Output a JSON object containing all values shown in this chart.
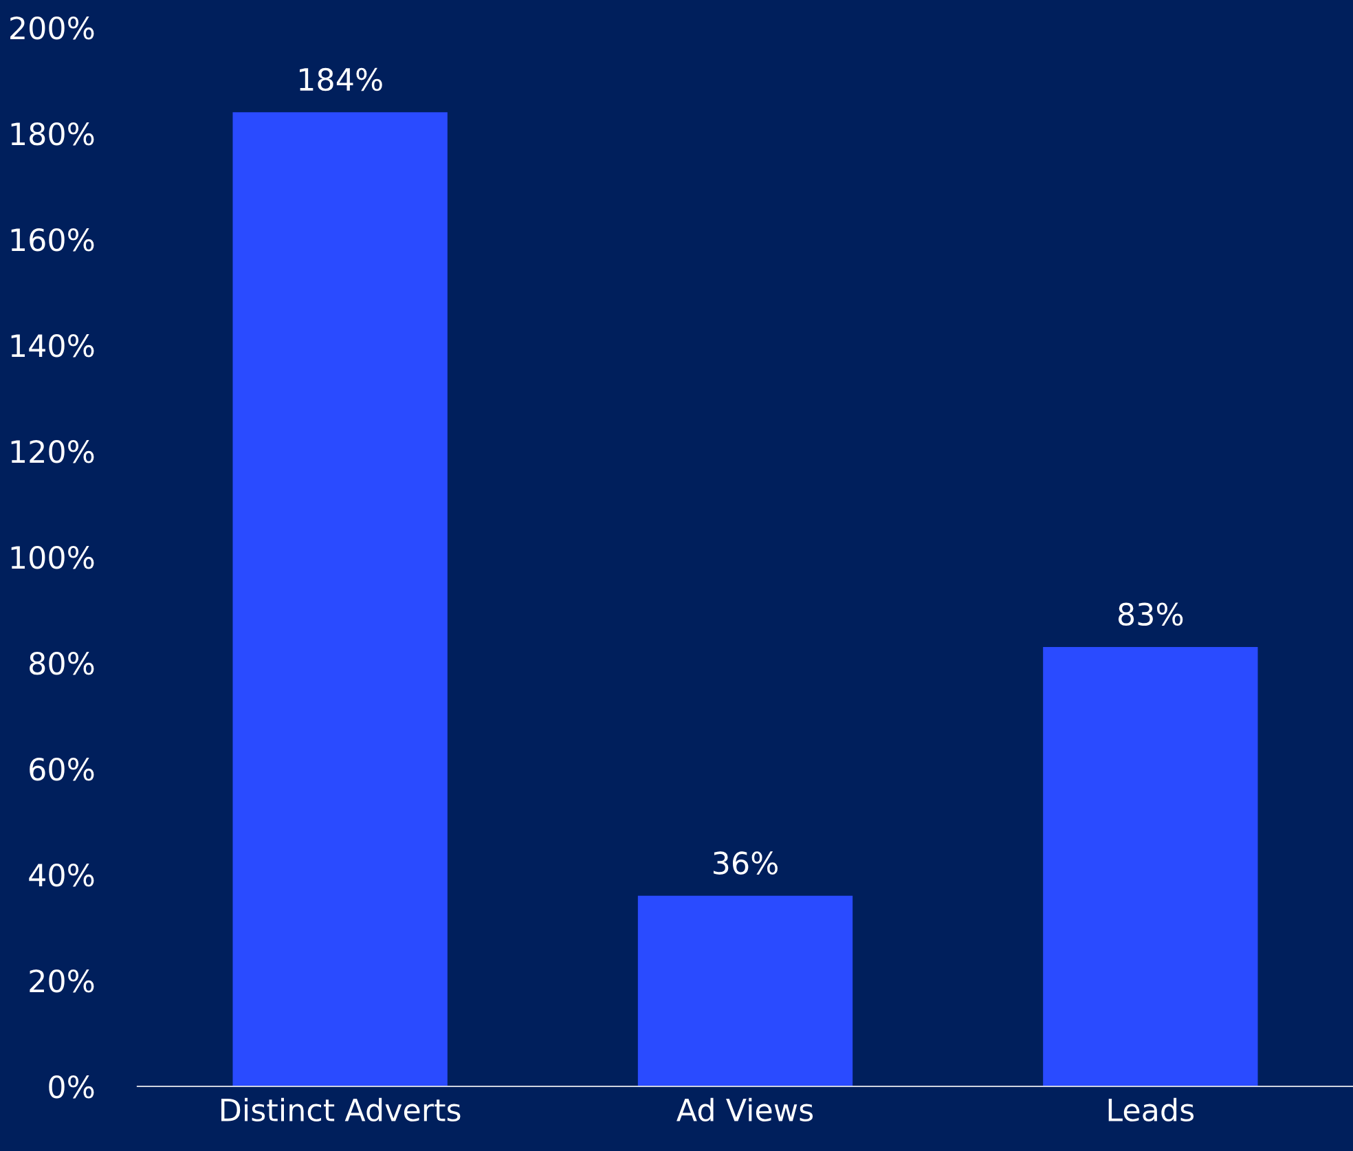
{
  "chart_data": {
    "type": "bar",
    "categories": [
      "Distinct Adverts",
      "Ad Views",
      "Leads"
    ],
    "values": [
      184,
      36,
      83
    ],
    "value_labels": [
      "184%",
      "36%",
      "83%"
    ],
    "color": "#2a4bff",
    "ylim": [
      0,
      200
    ],
    "yticks": [
      {
        "value": 0,
        "label": "0%"
      },
      {
        "value": 20,
        "label": "20%"
      },
      {
        "value": 40,
        "label": "40%"
      },
      {
        "value": 60,
        "label": "60%"
      },
      {
        "value": 80,
        "label": "80%"
      },
      {
        "value": 100,
        "label": "100%"
      },
      {
        "value": 120,
        "label": "120%"
      },
      {
        "value": 140,
        "label": "140%"
      },
      {
        "value": 160,
        "label": "160%"
      },
      {
        "value": 180,
        "label": "180%"
      },
      {
        "value": 200,
        "label": "200%"
      }
    ],
    "grid": false,
    "legend": false
  }
}
